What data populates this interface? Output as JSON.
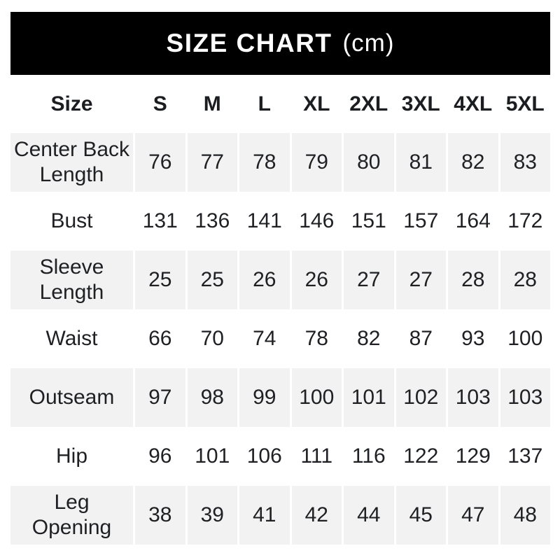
{
  "header": {
    "title": "SIZE CHART",
    "unit_label": "(cm)"
  },
  "chart_data": {
    "type": "table",
    "title": "SIZE CHART",
    "unit": "cm",
    "columns": [
      "Size",
      "S",
      "M",
      "L",
      "XL",
      "2XL",
      "3XL",
      "4XL",
      "5XL"
    ],
    "rows": [
      {
        "label": "Center Back Length",
        "values": [
          76,
          77,
          78,
          79,
          80,
          81,
          82,
          83
        ]
      },
      {
        "label": "Bust",
        "values": [
          131,
          136,
          141,
          146,
          151,
          157,
          164,
          172
        ]
      },
      {
        "label": "Sleeve Length",
        "values": [
          25,
          25,
          26,
          26,
          27,
          27,
          28,
          28
        ]
      },
      {
        "label": "Waist",
        "values": [
          66,
          70,
          74,
          78,
          82,
          87,
          93,
          100
        ]
      },
      {
        "label": "Outseam",
        "values": [
          97,
          98,
          99,
          100,
          101,
          102,
          103,
          103
        ]
      },
      {
        "label": "Hip",
        "values": [
          96,
          101,
          106,
          111,
          116,
          122,
          129,
          137
        ]
      },
      {
        "label": "Leg Opening",
        "values": [
          38,
          39,
          41,
          42,
          44,
          45,
          47,
          48
        ]
      }
    ],
    "layout": {
      "striped_rows": [
        "Center Back Length",
        "Sleeve Length",
        "Outseam",
        "Leg Opening"
      ],
      "grid": "off",
      "alignment": "center"
    },
    "colors": {
      "header_bg": "#000000",
      "header_text": "#ffffff",
      "stripe_bg": "#f2f2f2",
      "text": "#1f2023",
      "page_bg": "#ffffff"
    }
  }
}
